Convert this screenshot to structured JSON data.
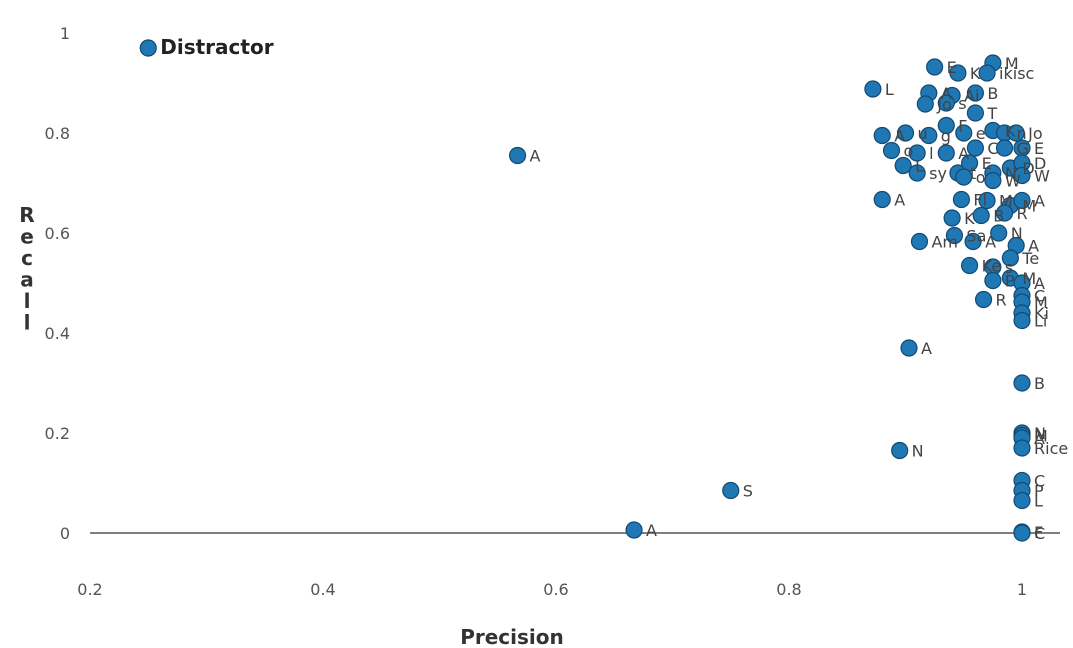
{
  "chart_data": {
    "type": "scatter",
    "xlabel": "Precision",
    "ylabel": "Recall",
    "xlim": [
      0.2,
      1.0
    ],
    "ylim": [
      0,
      1.0
    ],
    "x_ticks": [
      "0.2",
      "0.4",
      "0.6",
      "0.8",
      "1"
    ],
    "y_ticks": [
      "0",
      "0.2",
      "0.4",
      "0.6",
      "0.8",
      "1"
    ],
    "marker_color": "#1f77b4",
    "grid": false,
    "points": [
      {
        "x": 0.25,
        "y": 0.97,
        "label": "Distractor",
        "emphasis": true
      },
      {
        "x": 0.567,
        "y": 0.755,
        "label": "A"
      },
      {
        "x": 0.667,
        "y": 0.006,
        "label": "A"
      },
      {
        "x": 0.75,
        "y": 0.085,
        "label": "S"
      },
      {
        "x": 0.895,
        "y": 0.165,
        "label": "N"
      },
      {
        "x": 0.903,
        "y": 0.37,
        "label": "A"
      },
      {
        "x": 0.912,
        "y": 0.583,
        "label": "Am"
      },
      {
        "x": 0.88,
        "y": 0.667,
        "label": "A"
      },
      {
        "x": 0.872,
        "y": 0.888,
        "label": "L"
      },
      {
        "x": 0.925,
        "y": 0.932,
        "label": "E"
      },
      {
        "x": 0.945,
        "y": 0.92,
        "label": "K"
      },
      {
        "x": 0.975,
        "y": 0.94,
        "label": "M"
      },
      {
        "x": 0.97,
        "y": 0.92,
        "label": "ikisc"
      },
      {
        "x": 0.92,
        "y": 0.88,
        "label": "A"
      },
      {
        "x": 0.94,
        "y": 0.875,
        "label": "Ai"
      },
      {
        "x": 0.96,
        "y": 0.88,
        "label": "B"
      },
      {
        "x": 0.917,
        "y": 0.858,
        "label": "Jo"
      },
      {
        "x": 0.935,
        "y": 0.86,
        "label": "s"
      },
      {
        "x": 0.96,
        "y": 0.84,
        "label": "T"
      },
      {
        "x": 0.935,
        "y": 0.815,
        "label": "F"
      },
      {
        "x": 0.88,
        "y": 0.795,
        "label": "A"
      },
      {
        "x": 0.9,
        "y": 0.8,
        "label": "u"
      },
      {
        "x": 0.92,
        "y": 0.795,
        "label": "g"
      },
      {
        "x": 0.95,
        "y": 0.8,
        "label": "e"
      },
      {
        "x": 0.975,
        "y": 0.805,
        "label": "K"
      },
      {
        "x": 0.985,
        "y": 0.8,
        "label": "n"
      },
      {
        "x": 0.995,
        "y": 0.8,
        "label": "Jo"
      },
      {
        "x": 0.888,
        "y": 0.765,
        "label": "o"
      },
      {
        "x": 0.91,
        "y": 0.76,
        "label": "l"
      },
      {
        "x": 0.935,
        "y": 0.76,
        "label": "A"
      },
      {
        "x": 0.96,
        "y": 0.77,
        "label": "C"
      },
      {
        "x": 0.985,
        "y": 0.77,
        "label": "G"
      },
      {
        "x": 1.0,
        "y": 0.77,
        "label": "E"
      },
      {
        "x": 0.898,
        "y": 0.735,
        "label": "L"
      },
      {
        "x": 0.91,
        "y": 0.72,
        "label": "sy"
      },
      {
        "x": 0.945,
        "y": 0.72,
        "label": "t"
      },
      {
        "x": 0.955,
        "y": 0.74,
        "label": "E"
      },
      {
        "x": 0.975,
        "y": 0.72,
        "label": "N"
      },
      {
        "x": 0.99,
        "y": 0.73,
        "label": "D"
      },
      {
        "x": 1.0,
        "y": 0.74,
        "label": "D"
      },
      {
        "x": 0.95,
        "y": 0.712,
        "label": "o"
      },
      {
        "x": 0.975,
        "y": 0.705,
        "label": "W"
      },
      {
        "x": 1.0,
        "y": 0.715,
        "label": "W"
      },
      {
        "x": 0.948,
        "y": 0.667,
        "label": "Fl"
      },
      {
        "x": 0.97,
        "y": 0.665,
        "label": "M"
      },
      {
        "x": 0.99,
        "y": 0.655,
        "label": "M"
      },
      {
        "x": 1.0,
        "y": 0.665,
        "label": "A"
      },
      {
        "x": 0.94,
        "y": 0.63,
        "label": "K"
      },
      {
        "x": 0.965,
        "y": 0.635,
        "label": "B"
      },
      {
        "x": 0.985,
        "y": 0.64,
        "label": "R"
      },
      {
        "x": 0.942,
        "y": 0.595,
        "label": "Sa"
      },
      {
        "x": 0.958,
        "y": 0.583,
        "label": "A"
      },
      {
        "x": 0.98,
        "y": 0.6,
        "label": "N"
      },
      {
        "x": 0.995,
        "y": 0.575,
        "label": "A"
      },
      {
        "x": 0.99,
        "y": 0.55,
        "label": "Te"
      },
      {
        "x": 0.955,
        "y": 0.535,
        "label": "Ke"
      },
      {
        "x": 0.975,
        "y": 0.532,
        "label": "s"
      },
      {
        "x": 0.975,
        "y": 0.505,
        "label": "P"
      },
      {
        "x": 0.99,
        "y": 0.51,
        "label": "M"
      },
      {
        "x": 1.0,
        "y": 0.5,
        "label": "A"
      },
      {
        "x": 0.967,
        "y": 0.467,
        "label": "R"
      },
      {
        "x": 1.0,
        "y": 0.475,
        "label": "C"
      },
      {
        "x": 1.0,
        "y": 0.462,
        "label": "M"
      },
      {
        "x": 1.0,
        "y": 0.44,
        "label": "Ki"
      },
      {
        "x": 1.0,
        "y": 0.425,
        "label": "Li"
      },
      {
        "x": 1.0,
        "y": 0.3,
        "label": "B"
      },
      {
        "x": 1.0,
        "y": 0.2,
        "label": "N"
      },
      {
        "x": 1.0,
        "y": 0.195,
        "label": "M"
      },
      {
        "x": 1.0,
        "y": 0.19,
        "label": "A"
      },
      {
        "x": 1.0,
        "y": 0.17,
        "label": "Rice"
      },
      {
        "x": 1.0,
        "y": 0.105,
        "label": "C"
      },
      {
        "x": 1.0,
        "y": 0.085,
        "label": "P"
      },
      {
        "x": 1.0,
        "y": 0.065,
        "label": "L"
      },
      {
        "x": 1.0,
        "y": 0.002,
        "label": "F"
      },
      {
        "x": 1.0,
        "y": 0.0,
        "label": "C"
      }
    ]
  }
}
